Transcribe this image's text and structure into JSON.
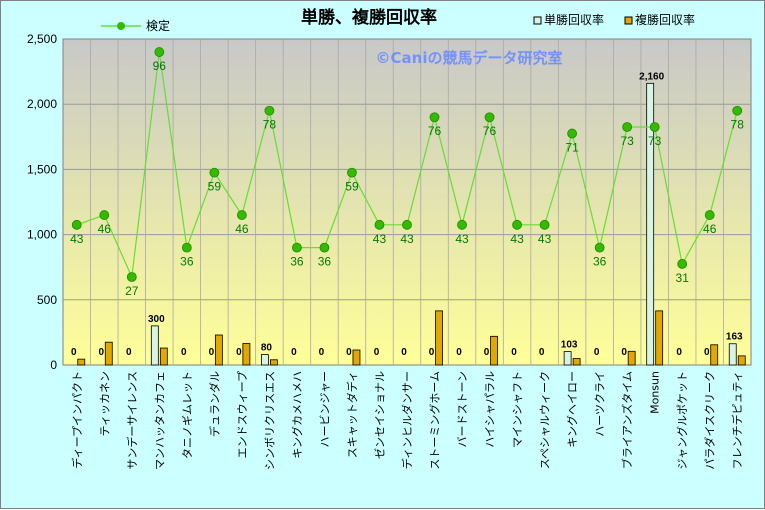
{
  "chart_data": {
    "type": "bar",
    "title": "単勝、複勝回収率",
    "watermark": "©Caniの競馬データ研究室",
    "ylim": [
      0,
      2500
    ],
    "yticks": [
      "0",
      "500",
      "1,000",
      "1,500",
      "2,000",
      "2,500"
    ],
    "grid": true,
    "legend_placement": "top",
    "colors": {
      "win_bar": "#d8f4e4",
      "place_bar": "#e0a800",
      "line": "#66dd33",
      "marker": "#33bb00",
      "plot_top": "#c8c8c8",
      "plot_bottom": "#ffff99",
      "line_label": "#007a00"
    },
    "categories": [
      "ディープインパクト",
      "ティッカネン",
      "サンデーサイレンス",
      "マンハッタンカフェ",
      "タニノギムレット",
      "デュランダル",
      "エンドスウィープ",
      "シンボリクリスエス",
      "キングカメハメハ",
      "ハービンジャー",
      "スキャットダディ",
      "ゼンセイショナル",
      "ディンヒルダンサー",
      "ストーミングホーム",
      "バードストーン",
      "ハイシャパラル",
      "マインシャフト",
      "スペシャルウィーク",
      "キングヘイロー",
      "ハーツクライ",
      "ブライアンズタイム",
      "Monsun",
      "ジャングルポケット",
      "パラダイスクリーク",
      "フレンチデピュティ"
    ],
    "series": [
      {
        "name": "単勝回収率",
        "kind": "bar",
        "values": [
          0,
          0,
          0,
          300,
          0,
          0,
          0,
          80,
          0,
          0,
          0,
          0,
          0,
          0,
          0,
          0,
          0,
          0,
          103,
          0,
          0,
          2160,
          0,
          0,
          163
        ],
        "labels": [
          "0",
          "0",
          "0",
          "300",
          "0",
          "0",
          "0",
          "80",
          "0",
          "0",
          "0",
          "0",
          "0",
          "0",
          "0",
          "0",
          "0",
          "0",
          "103",
          "0",
          "0",
          "2,160",
          "0",
          "0",
          "163"
        ]
      },
      {
        "name": "複勝回収率",
        "kind": "bar",
        "values": [
          45,
          175,
          0,
          130,
          0,
          230,
          165,
          40,
          0,
          0,
          115,
          0,
          0,
          415,
          0,
          220,
          0,
          0,
          50,
          0,
          105,
          415,
          0,
          155,
          70
        ]
      },
      {
        "name": "検定",
        "kind": "line",
        "values": [
          43,
          46,
          27,
          96,
          36,
          59,
          46,
          78,
          36,
          36,
          59,
          43,
          43,
          76,
          43,
          76,
          43,
          43,
          71,
          36,
          73,
          73,
          31,
          46,
          78
        ]
      }
    ]
  }
}
